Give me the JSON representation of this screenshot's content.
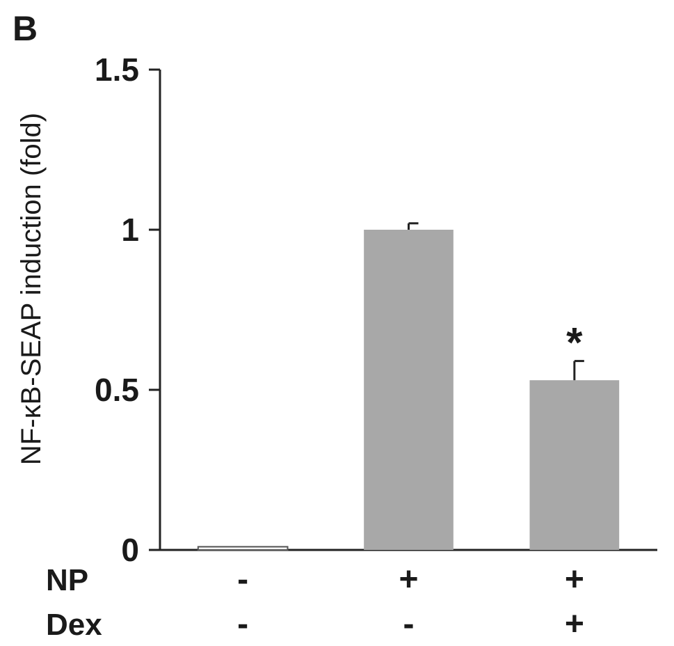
{
  "panel_label": "B",
  "chart_data": {
    "type": "bar",
    "ylabel": "NF-κB-SEAP induction (fold)",
    "ylim": [
      0,
      1.5
    ],
    "yticks": [
      {
        "value": 0,
        "label": "0"
      },
      {
        "value": 0.5,
        "label": "0.5"
      },
      {
        "value": 1,
        "label": "1"
      },
      {
        "value": 1.5,
        "label": "1.5"
      }
    ],
    "groups": [
      {
        "value": 0.01,
        "error": 0,
        "color": "#f2f2f2",
        "np": "-",
        "dex": "-",
        "annotation": ""
      },
      {
        "value": 1.0,
        "error": 0.02,
        "color": "#a8a8a8",
        "np": "+",
        "dex": "-",
        "annotation": ""
      },
      {
        "value": 0.53,
        "error": 0.06,
        "color": "#a8a8a8",
        "np": "+",
        "dex": "+",
        "annotation": "*"
      }
    ],
    "condition_rows": [
      {
        "key": "np",
        "label": "NP"
      },
      {
        "key": "dex",
        "label": "Dex"
      }
    ]
  }
}
